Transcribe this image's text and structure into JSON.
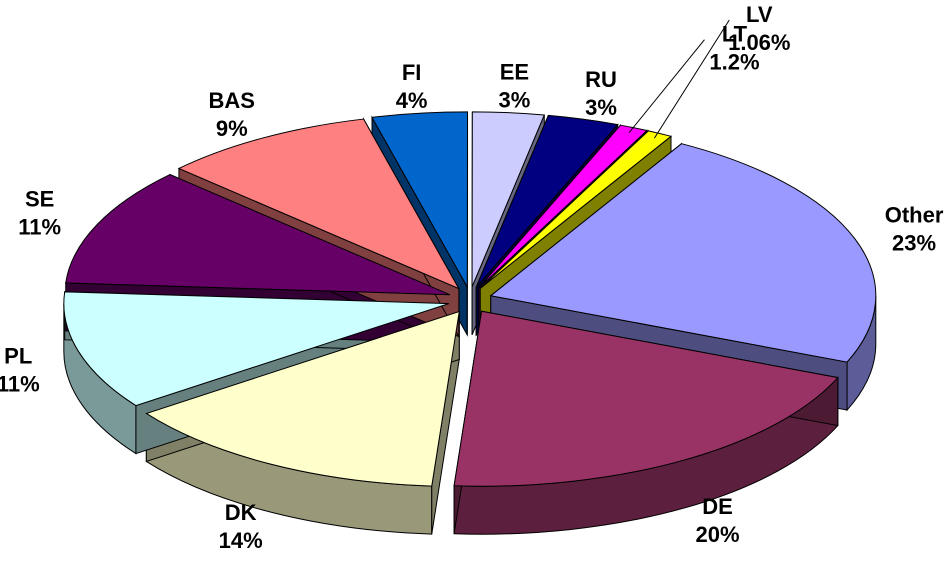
{
  "chart_data": {
    "type": "pie",
    "categories": [
      "FI",
      "EE",
      "RU",
      "LT",
      "LV",
      "Other",
      "DE",
      "DK",
      "PL",
      "SE",
      "BAS"
    ],
    "values": [
      4,
      3,
      3,
      1.2,
      1.06,
      23,
      20,
      14,
      11,
      11,
      9
    ],
    "value_labels": [
      "4%",
      "3%",
      "3%",
      "1.2%",
      "1.06%",
      "23%",
      "20%",
      "14%",
      "11%",
      "11%",
      "9%"
    ],
    "colors": [
      "#0066cc",
      "#ccccff",
      "#000080",
      "#ff00ff",
      "#ffff00",
      "#9999ff",
      "#993366",
      "#ffffcc",
      "#ccffff",
      "#660066",
      "#ff8080"
    ]
  }
}
